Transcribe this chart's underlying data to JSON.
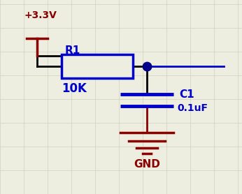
{
  "bg_color": "#eeeee0",
  "grid_color": "#d0d0c0",
  "wire_color": "#000000",
  "component_color": "#0000cc",
  "power_color": "#8b0000",
  "gnd_color": "#8b0000",
  "dot_color": "#00008b",
  "vcc_label": "+3.3V",
  "r_label": "R1",
  "r_value": "10K",
  "c_label": "C1",
  "c_value": "0.1uF",
  "gnd_label": "GND",
  "figsize": [
    3.46,
    2.78
  ],
  "dpi": 100,
  "xlim": [
    0,
    346
  ],
  "ylim": [
    0,
    278
  ]
}
